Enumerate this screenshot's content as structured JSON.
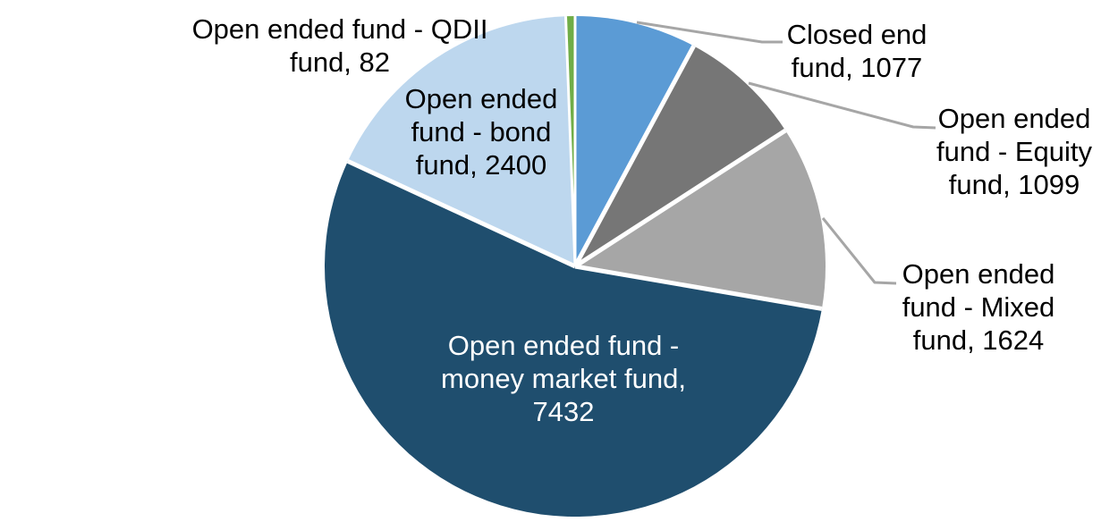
{
  "chart_data": {
    "type": "pie",
    "title": "",
    "legend_position": "none",
    "background_color": "#FFFFFF",
    "separator_color": "#FFFFFF",
    "leader_line_color": "#A6A6A6",
    "direction": "clockwise",
    "start_angle_deg": 0,
    "segments": [
      {
        "id": "closed-end-fund",
        "label": "Closed end fund",
        "value": 1077,
        "color": "#5B9BD5",
        "callout": "Closed end\nfund, 1077",
        "callout_text_color": "#000000",
        "has_leader_line": true
      },
      {
        "id": "open-ended-equity-fund",
        "label": "Open ended fund - Equity fund",
        "value": 1099,
        "color": "#767676",
        "callout": "Open ended\nfund - Equity\nfund, 1099",
        "callout_text_color": "#000000",
        "has_leader_line": true
      },
      {
        "id": "open-ended-mixed-fund",
        "label": "Open ended fund - Mixed fund",
        "value": 1624,
        "color": "#A6A6A6",
        "callout": "Open ended\nfund - Mixed\nfund, 1624",
        "callout_text_color": "#000000",
        "has_leader_line": true
      },
      {
        "id": "open-ended-money-market-fund",
        "label": "Open ended fund - money market fund",
        "value": 7432,
        "color": "#1F4E6E",
        "callout": "Open ended fund -\nmoney market fund,\n7432",
        "callout_text_color": "#FFFFFF",
        "has_leader_line": false
      },
      {
        "id": "open-ended-bond-fund",
        "label": "Open ended fund - bond fund",
        "value": 2400,
        "color": "#BDD7EE",
        "callout": "Open ended\nfund - bond\nfund, 2400",
        "callout_text_color": "#000000",
        "has_leader_line": false
      },
      {
        "id": "open-ended-qdii-fund",
        "label": "Open ended fund - QDII fund",
        "value": 82,
        "color": "#70AD47",
        "callout": "Open ended fund - QDII\nfund, 82",
        "callout_text_color": "#000000",
        "has_leader_line": false
      }
    ]
  }
}
